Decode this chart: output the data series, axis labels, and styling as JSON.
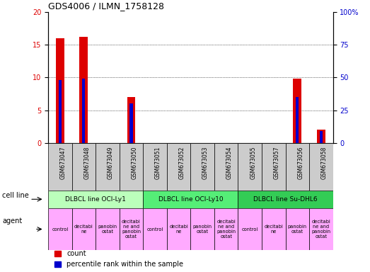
{
  "title": "GDS4006 / ILMN_1758128",
  "samples": [
    "GSM673047",
    "GSM673048",
    "GSM673049",
    "GSM673050",
    "GSM673051",
    "GSM673052",
    "GSM673053",
    "GSM673054",
    "GSM673055",
    "GSM673057",
    "GSM673056",
    "GSM673058"
  ],
  "counts": [
    16.0,
    16.2,
    0,
    7.0,
    0,
    0,
    0,
    0,
    0,
    0,
    9.8,
    2.0
  ],
  "percentiles": [
    48,
    49,
    0,
    30,
    0,
    0,
    0,
    0,
    0,
    0,
    35,
    9
  ],
  "ylim_left": [
    0,
    20
  ],
  "ylim_right": [
    0,
    100
  ],
  "yticks_left": [
    0,
    5,
    10,
    15,
    20
  ],
  "yticks_right": [
    0,
    25,
    50,
    75,
    100
  ],
  "ytick_labels_right": [
    "0",
    "25",
    "50",
    "75",
    "100%"
  ],
  "hgrid_values": [
    5,
    10,
    15
  ],
  "bar_color_count": "#dd0000",
  "bar_color_pct": "#0000cc",
  "cell_lines": [
    {
      "label": "DLBCL line OCI-Ly1",
      "start": 0,
      "end": 4,
      "color": "#bbffbb"
    },
    {
      "label": "DLBCL line OCI-Ly10",
      "start": 4,
      "end": 8,
      "color": "#55ee77"
    },
    {
      "label": "DLBCL line Su-DHL6",
      "start": 8,
      "end": 12,
      "color": "#33cc55"
    }
  ],
  "agents": [
    "control",
    "decitabi\nne",
    "panobin\nostat",
    "decitabi\nne and\npanobin\nostat",
    "control",
    "decitabi\nne",
    "panobin\nostat",
    "decitabi\nne and\npanobin\nostat",
    "control",
    "decitabi\nne",
    "panobin\nostat",
    "decitabi\nne and\npanobin\nostat"
  ],
  "agent_color": "#ffaaff",
  "sample_bg_color": "#cccccc",
  "cell_line_row_label": "cell line",
  "agent_row_label": "agent",
  "legend_count_label": "count",
  "legend_pct_label": "percentile rank within the sample"
}
